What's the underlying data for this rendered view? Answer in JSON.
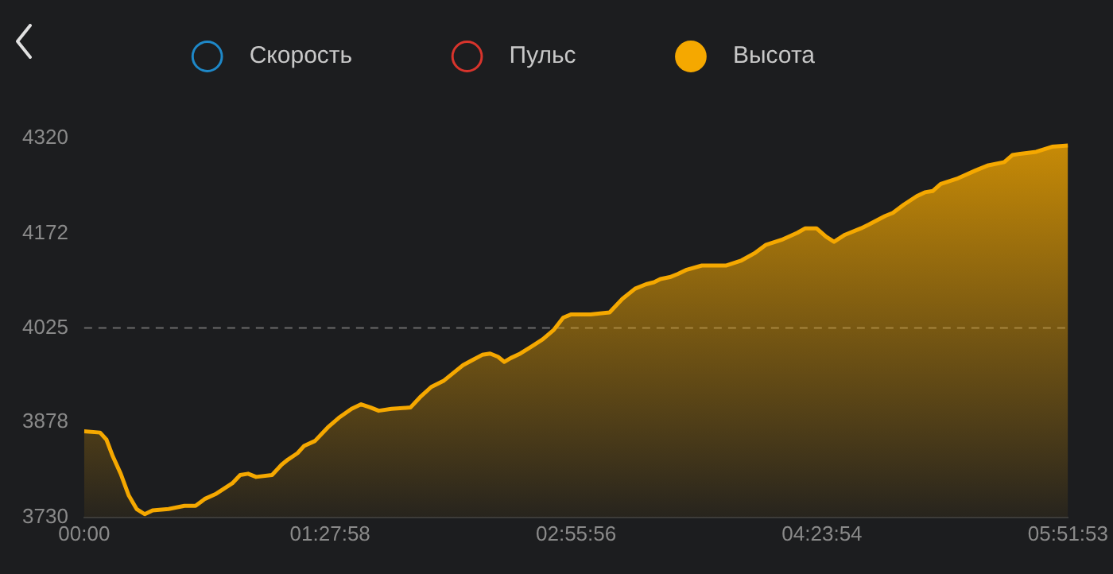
{
  "chart_data": {
    "type": "area",
    "legend": "top",
    "x": [
      0,
      0.095,
      0.133,
      0.171,
      0.218,
      0.266,
      0.313,
      0.361,
      0.408,
      0.503,
      0.598,
      0.664,
      0.721,
      0.788,
      0.883,
      0.93,
      0.977,
      1.025,
      1.12,
      1.177,
      1.215,
      1.272,
      1.31,
      1.376,
      1.452,
      1.518,
      1.594,
      1.651,
      1.708,
      1.756,
      1.832,
      1.945,
      2.002,
      2.069,
      2.145,
      2.211,
      2.259,
      2.316,
      2.373,
      2.42,
      2.467,
      2.505,
      2.543,
      2.6,
      2.667,
      2.733,
      2.8,
      2.856,
      2.904,
      3.018,
      3.132,
      3.208,
      3.284,
      3.35,
      3.397,
      3.435,
      3.492,
      3.54,
      3.587,
      3.682,
      3.825,
      3.919,
      3.995,
      4.062,
      4.157,
      4.252,
      4.299,
      4.365,
      4.422,
      4.47,
      4.536,
      4.631,
      4.679,
      4.774,
      4.821,
      4.887,
      4.963,
      5.011,
      5.058,
      5.106,
      5.201,
      5.314,
      5.39,
      5.485,
      5.533,
      5.58,
      5.675,
      5.77,
      5.8647
    ],
    "series": [
      {
        "name": "Скорость",
        "type": "line",
        "color": "#1e88c8",
        "values": [
          null,
          null,
          null,
          null,
          null,
          null,
          null,
          null,
          null,
          null,
          null,
          null,
          null,
          null,
          null,
          null,
          null,
          null,
          null,
          null,
          null,
          null,
          null,
          null,
          null,
          null,
          null,
          null,
          null,
          null,
          null,
          null,
          null,
          null,
          null,
          null,
          null,
          null,
          null,
          null,
          null,
          null,
          null,
          null,
          null,
          null,
          null,
          null,
          null,
          null,
          null,
          null,
          null,
          null,
          null,
          null,
          null,
          null,
          null,
          null,
          null,
          null,
          null,
          null,
          null,
          null,
          null,
          null,
          null,
          null,
          null,
          null,
          null,
          null,
          null,
          null,
          null,
          null,
          null,
          null,
          null,
          null,
          null,
          null,
          null,
          null,
          null,
          null,
          null
        ]
      },
      {
        "name": "Пульс",
        "type": "line",
        "color": "#d8342c",
        "values": [
          null,
          null,
          null,
          null,
          null,
          null,
          null,
          null,
          null,
          null,
          null,
          null,
          null,
          null,
          null,
          null,
          null,
          null,
          null,
          null,
          null,
          null,
          null,
          null,
          null,
          null,
          null,
          null,
          null,
          null,
          null,
          null,
          null,
          null,
          null,
          null,
          null,
          null,
          null,
          null,
          null,
          null,
          null,
          null,
          null,
          null,
          null,
          null,
          null,
          null,
          null,
          null,
          null,
          null,
          null,
          null,
          null,
          null,
          null,
          null,
          null,
          null,
          null,
          null,
          null,
          null,
          null,
          null,
          null,
          null,
          null,
          null,
          null,
          null,
          null,
          null,
          null,
          null,
          null,
          null,
          null,
          null,
          null,
          null,
          null,
          null,
          null,
          null,
          null
        ]
      },
      {
        "name": "Высота",
        "color": "#f5a800",
        "values": [
          3864,
          3862,
          3851,
          3825,
          3798,
          3764,
          3743,
          3735,
          3741,
          3743,
          3748,
          3748,
          3759,
          3767,
          3783,
          3796,
          3798,
          3793,
          3796,
          3812,
          3820,
          3830,
          3841,
          3849,
          3870,
          3885,
          3899,
          3906,
          3901,
          3896,
          3899,
          3901,
          3917,
          3933,
          3943,
          3957,
          3967,
          3975,
          3983,
          3985,
          3980,
          3972,
          3978,
          3985,
          3996,
          4007,
          4022,
          4041,
          4046,
          4046,
          4049,
          4070,
          4086,
          4093,
          4096,
          4101,
          4104,
          4109,
          4115,
          4122,
          4122,
          4130,
          4141,
          4154,
          4162,
          4173,
          4180,
          4180,
          4167,
          4159,
          4170,
          4180,
          4186,
          4199,
          4204,
          4217,
          4230,
          4236,
          4238,
          4249,
          4257,
          4270,
          4278,
          4283,
          4294,
          4296,
          4299,
          4307,
          4309
        ]
      }
    ],
    "xlim": [
      0,
      5.8647
    ],
    "xticks": [
      {
        "value": 0,
        "label": "00:00"
      },
      {
        "value": 1.4661,
        "label": "01:27:58"
      },
      {
        "value": 2.9322,
        "label": "02:55:56"
      },
      {
        "value": 4.3983,
        "label": "04:23:54"
      },
      {
        "value": 5.8647,
        "label": "05:51:53"
      }
    ],
    "ylim": [
      3730,
      4320
    ],
    "yticks": [
      3730,
      3878,
      4025,
      4172,
      4320
    ],
    "grid": false,
    "ref_lines": [
      {
        "axis": "y",
        "value": 4025,
        "color": "#6a6a6a",
        "line_style": "dashed"
      }
    ]
  }
}
